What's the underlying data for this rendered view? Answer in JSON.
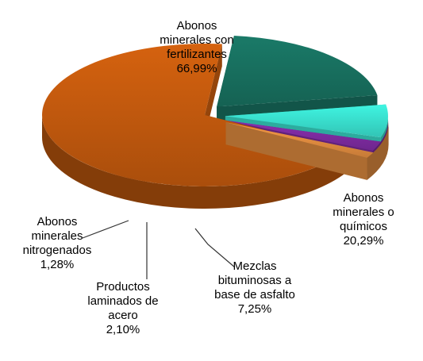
{
  "chart_data": {
    "type": "pie",
    "style": "3d-exploded",
    "slices": [
      {
        "name": "Abonos minerales con fertilizantes",
        "value": 66.99,
        "value_label": "66,99%",
        "color": "#d5620f",
        "label_lines": [
          "Abonos",
          "minerales con",
          "fertilizantes"
        ]
      },
      {
        "name": "Abonos minerales o químicos",
        "value": 20.29,
        "value_label": "20,29%",
        "color": "#1a7a68",
        "label_lines": [
          "Abonos",
          "minerales o",
          "químicos"
        ]
      },
      {
        "name": "Mezclas bituminosas a base de asfalto",
        "value": 7.25,
        "value_label": "7,25%",
        "color": "#3ff5e2",
        "label_lines": [
          "Mezclas",
          "bituminosas a",
          "base de asfalto"
        ]
      },
      {
        "name": "Productos laminados de acero",
        "value": 2.1,
        "value_label": "2,10%",
        "color": "#8a2fb0",
        "label_lines": [
          "Productos",
          "laminados de",
          "acero"
        ]
      },
      {
        "name": "Abonos minerales nitrogenados",
        "value": 1.28,
        "value_label": "1,28%",
        "color": "#f79a46",
        "label_lines": [
          "Abonos",
          "minerales",
          "nitrogenados"
        ]
      }
    ]
  }
}
